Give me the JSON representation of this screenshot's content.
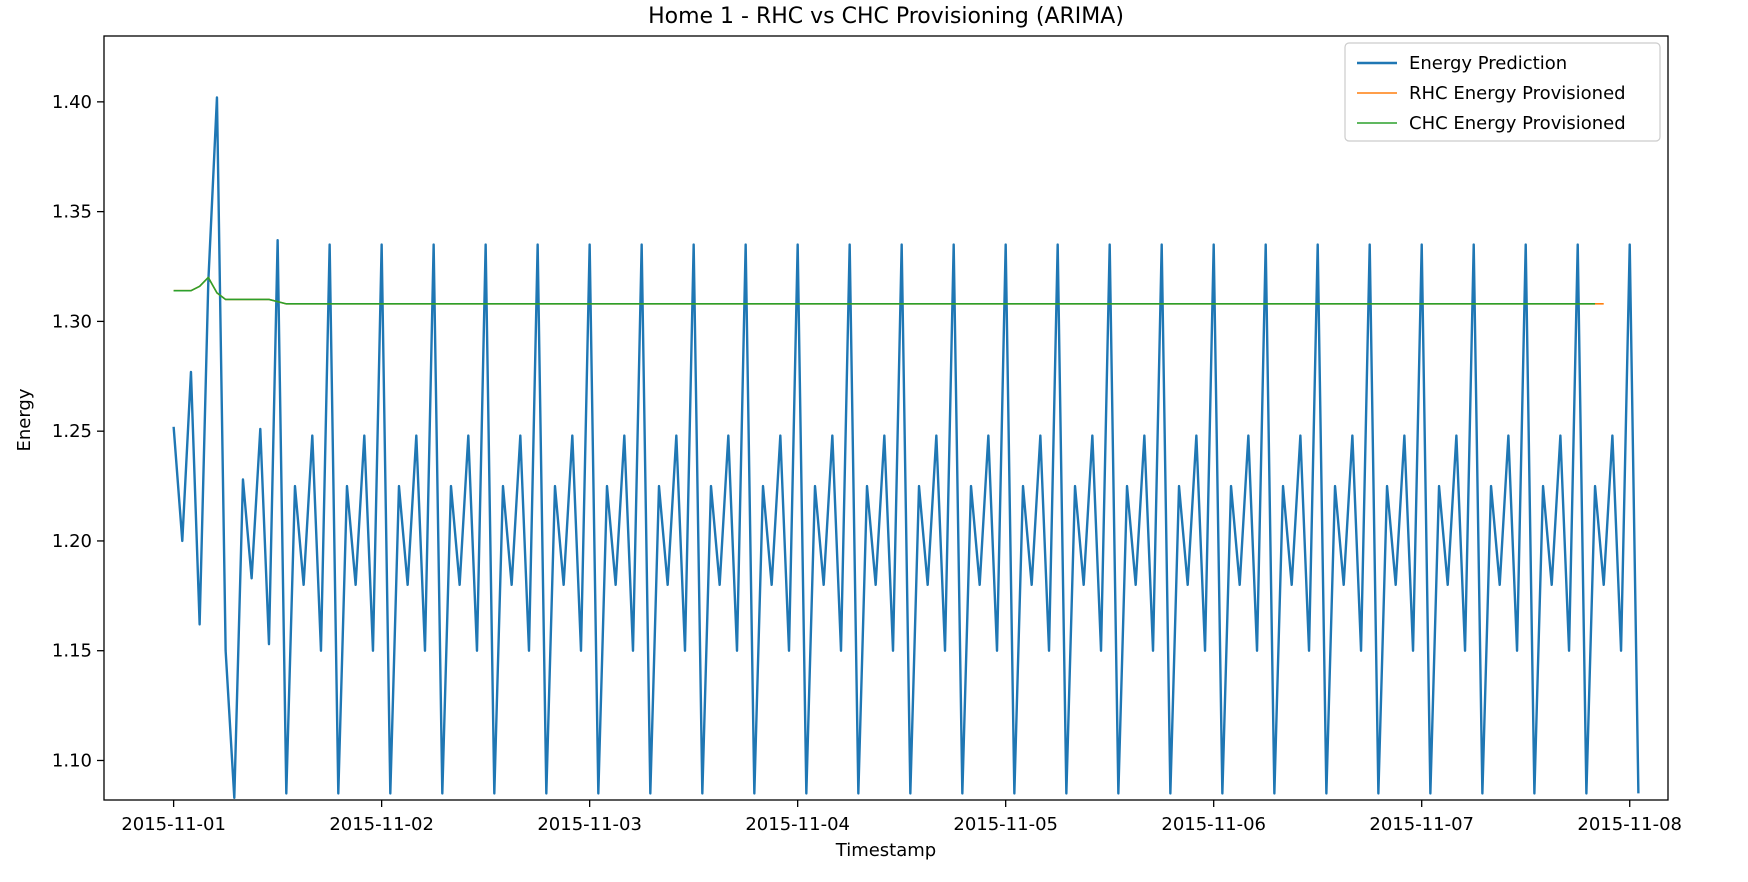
{
  "chart_data": {
    "type": "line",
    "title": "Home 1 - RHC vs CHC Provisioning (ARIMA)",
    "xlabel": "Timestamp",
    "ylabel": "Energy",
    "xlim": [
      "2015-10-31 15:58",
      "2015-11-08 04:25"
    ],
    "ylim": [
      1.082,
      1.43
    ],
    "x_ticks": [
      "2015-11-01",
      "2015-11-02",
      "2015-11-03",
      "2015-11-04",
      "2015-11-05",
      "2015-11-06",
      "2015-11-07",
      "2015-11-08"
    ],
    "y_ticks": [
      "1.10",
      "1.15",
      "1.20",
      "1.25",
      "1.30",
      "1.35",
      "1.40"
    ],
    "legend": {
      "position": "upper-right"
    },
    "grid": false,
    "series": [
      {
        "name": "Energy Prediction",
        "color": "#1f77b4",
        "x_start": "2015-11-01 00:00",
        "interval_hours": 1,
        "values": [
          1.252,
          1.2,
          1.277,
          1.162,
          1.318,
          1.402,
          1.15,
          1.083,
          1.228,
          1.183,
          1.251,
          1.153,
          1.337,
          1.085,
          1.225,
          1.18,
          1.248,
          1.15,
          1.335,
          1.085,
          1.225,
          1.18,
          1.248,
          1.15,
          1.335,
          1.085,
          1.225,
          1.18,
          1.248,
          1.15,
          1.335,
          1.085,
          1.225,
          1.18,
          1.248,
          1.15,
          1.335,
          1.085,
          1.225,
          1.18,
          1.248,
          1.15,
          1.335,
          1.085,
          1.225,
          1.18,
          1.248,
          1.15,
          1.335,
          1.085,
          1.225,
          1.18,
          1.248,
          1.15,
          1.335,
          1.085,
          1.225,
          1.18,
          1.248,
          1.15,
          1.335,
          1.085,
          1.225,
          1.18,
          1.248,
          1.15,
          1.335,
          1.085,
          1.225,
          1.18,
          1.248,
          1.15,
          1.335,
          1.085,
          1.225,
          1.18,
          1.248,
          1.15,
          1.335,
          1.085,
          1.225,
          1.18,
          1.248,
          1.15,
          1.335,
          1.085,
          1.225,
          1.18,
          1.248,
          1.15,
          1.335,
          1.085,
          1.225,
          1.18,
          1.248,
          1.15,
          1.335,
          1.085,
          1.225,
          1.18,
          1.248,
          1.15,
          1.335,
          1.085,
          1.225,
          1.18,
          1.248,
          1.15,
          1.335,
          1.085,
          1.225,
          1.18,
          1.248,
          1.15,
          1.335,
          1.085,
          1.225,
          1.18,
          1.248,
          1.15,
          1.335,
          1.085,
          1.225,
          1.18,
          1.248,
          1.15,
          1.335,
          1.085,
          1.225,
          1.18,
          1.248,
          1.15,
          1.335,
          1.085,
          1.225,
          1.18,
          1.248,
          1.15,
          1.335,
          1.085,
          1.225,
          1.18,
          1.248,
          1.15,
          1.335,
          1.085,
          1.225,
          1.18,
          1.248,
          1.15,
          1.335,
          1.085,
          1.225,
          1.18,
          1.248,
          1.15,
          1.335,
          1.085,
          1.225,
          1.18,
          1.248,
          1.15,
          1.335,
          1.085,
          1.225,
          1.18,
          1.248,
          1.15,
          1.335,
          1.085
        ]
      },
      {
        "name": "RHC Energy Provisioned",
        "color": "#ff7f0e",
        "x_start": "2015-11-01 00:00",
        "interval_hours": 1,
        "values": [
          1.314,
          1.314,
          1.314,
          1.316,
          1.32,
          1.313,
          1.31,
          1.31,
          1.31,
          1.31,
          1.31,
          1.31,
          1.309,
          1.308,
          1.308,
          1.308,
          1.308,
          1.308,
          1.308,
          1.308,
          1.308,
          1.308,
          1.308,
          1.308,
          1.308,
          1.308,
          1.308,
          1.308,
          1.308,
          1.308,
          1.308,
          1.308,
          1.308,
          1.308,
          1.308,
          1.308,
          1.308,
          1.308,
          1.308,
          1.308,
          1.308,
          1.308,
          1.308,
          1.308,
          1.308,
          1.308,
          1.308,
          1.308,
          1.308,
          1.308,
          1.308,
          1.308,
          1.308,
          1.308,
          1.308,
          1.308,
          1.308,
          1.308,
          1.308,
          1.308,
          1.308,
          1.308,
          1.308,
          1.308,
          1.308,
          1.308,
          1.308,
          1.308,
          1.308,
          1.308,
          1.308,
          1.308,
          1.308,
          1.308,
          1.308,
          1.308,
          1.308,
          1.308,
          1.308,
          1.308,
          1.308,
          1.308,
          1.308,
          1.308,
          1.308,
          1.308,
          1.308,
          1.308,
          1.308,
          1.308,
          1.308,
          1.308,
          1.308,
          1.308,
          1.308,
          1.308,
          1.308,
          1.308,
          1.308,
          1.308,
          1.308,
          1.308,
          1.308,
          1.308,
          1.308,
          1.308,
          1.308,
          1.308,
          1.308,
          1.308,
          1.308,
          1.308,
          1.308,
          1.308,
          1.308,
          1.308,
          1.308,
          1.308,
          1.308,
          1.308,
          1.308,
          1.308,
          1.308,
          1.308,
          1.308,
          1.308,
          1.308,
          1.308,
          1.308,
          1.308,
          1.308,
          1.308,
          1.308,
          1.308,
          1.308,
          1.308,
          1.308,
          1.308,
          1.308,
          1.308,
          1.308,
          1.308,
          1.308,
          1.308,
          1.308,
          1.308,
          1.308,
          1.308,
          1.308,
          1.308,
          1.308,
          1.308,
          1.308,
          1.308,
          1.308,
          1.308,
          1.308,
          1.308,
          1.308,
          1.308,
          1.308,
          1.308,
          1.308,
          1.308,
          1.308,
          1.308
        ]
      },
      {
        "name": "CHC Energy Provisioned",
        "color": "#2ca02c",
        "x_start": "2015-11-01 00:00",
        "interval_hours": 1,
        "values": [
          1.314,
          1.314,
          1.314,
          1.316,
          1.32,
          1.313,
          1.31,
          1.31,
          1.31,
          1.31,
          1.31,
          1.31,
          1.309,
          1.308,
          1.308,
          1.308,
          1.308,
          1.308,
          1.308,
          1.308,
          1.308,
          1.308,
          1.308,
          1.308,
          1.308,
          1.308,
          1.308,
          1.308,
          1.308,
          1.308,
          1.308,
          1.308,
          1.308,
          1.308,
          1.308,
          1.308,
          1.308,
          1.308,
          1.308,
          1.308,
          1.308,
          1.308,
          1.308,
          1.308,
          1.308,
          1.308,
          1.308,
          1.308,
          1.308,
          1.308,
          1.308,
          1.308,
          1.308,
          1.308,
          1.308,
          1.308,
          1.308,
          1.308,
          1.308,
          1.308,
          1.308,
          1.308,
          1.308,
          1.308,
          1.308,
          1.308,
          1.308,
          1.308,
          1.308,
          1.308,
          1.308,
          1.308,
          1.308,
          1.308,
          1.308,
          1.308,
          1.308,
          1.308,
          1.308,
          1.308,
          1.308,
          1.308,
          1.308,
          1.308,
          1.308,
          1.308,
          1.308,
          1.308,
          1.308,
          1.308,
          1.308,
          1.308,
          1.308,
          1.308,
          1.308,
          1.308,
          1.308,
          1.308,
          1.308,
          1.308,
          1.308,
          1.308,
          1.308,
          1.308,
          1.308,
          1.308,
          1.308,
          1.308,
          1.308,
          1.308,
          1.308,
          1.308,
          1.308,
          1.308,
          1.308,
          1.308,
          1.308,
          1.308,
          1.308,
          1.308,
          1.308,
          1.308,
          1.308,
          1.308,
          1.308,
          1.308,
          1.308,
          1.308,
          1.308,
          1.308,
          1.308,
          1.308,
          1.308,
          1.308,
          1.308,
          1.308,
          1.308,
          1.308,
          1.308,
          1.308,
          1.308,
          1.308,
          1.308,
          1.308,
          1.308,
          1.308,
          1.308,
          1.308,
          1.308,
          1.308,
          1.308,
          1.308,
          1.308,
          1.308,
          1.308,
          1.308,
          1.308,
          1.308,
          1.308,
          1.308,
          1.308,
          1.308,
          1.308,
          1.308,
          1.308
        ]
      }
    ]
  }
}
